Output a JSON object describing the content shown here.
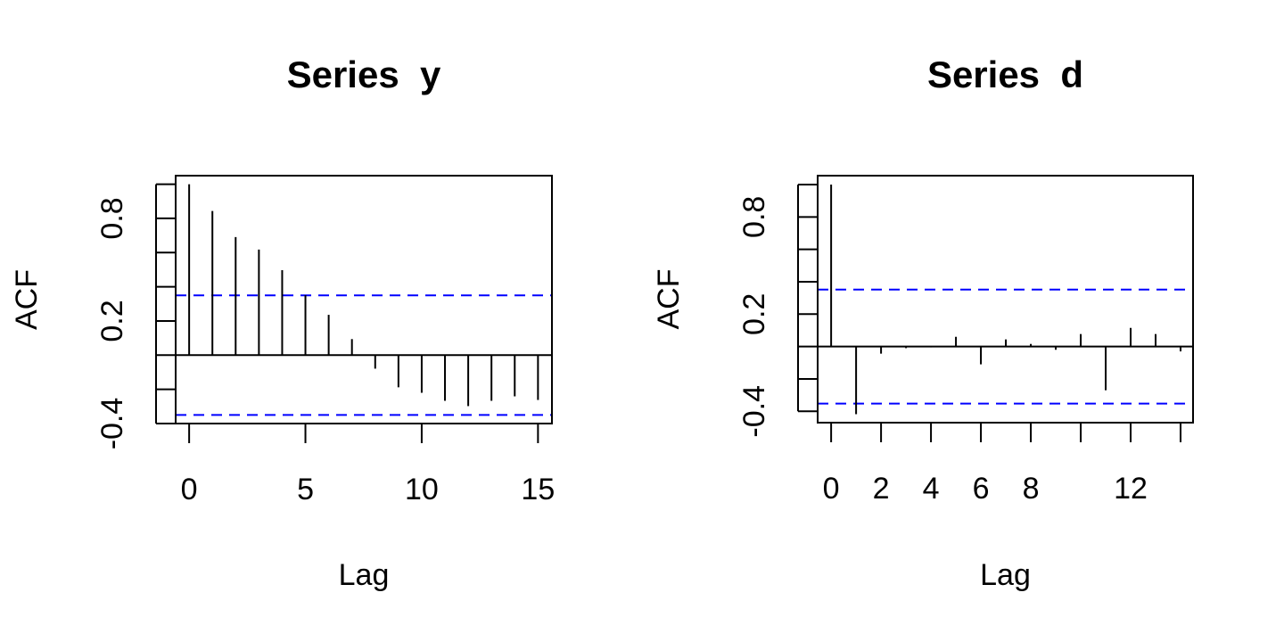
{
  "chart_data": [
    {
      "type": "acf",
      "title": "Series  y",
      "xlabel": "Lag",
      "ylabel": "ACF",
      "x": [
        0,
        1,
        2,
        3,
        4,
        5,
        6,
        7,
        8,
        9,
        10,
        11,
        12,
        13,
        14,
        15
      ],
      "values": [
        1.0,
        0.843,
        0.691,
        0.618,
        0.497,
        0.351,
        0.236,
        0.094,
        -0.079,
        -0.188,
        -0.22,
        -0.267,
        -0.298,
        -0.267,
        -0.241,
        -0.262
      ],
      "color": "#000000",
      "ci_upper": 0.35,
      "ci_lower": -0.35,
      "ci_color": "#0000ff",
      "xlim": [
        -0.58,
        15.6
      ],
      "ylim": [
        -0.4,
        1.05
      ],
      "xticks": [
        0,
        5,
        10,
        15
      ],
      "xticks_unlabeled": [],
      "yticks": [
        -0.4,
        0.2,
        0.8
      ],
      "yticks_unlabeled": [
        -0.2,
        0,
        0.4,
        0.6,
        1.0
      ]
    },
    {
      "type": "acf",
      "title": "Series  d",
      "xlabel": "Lag",
      "ylabel": "ACF",
      "x": [
        0,
        1,
        2,
        3,
        4,
        5,
        6,
        7,
        8,
        9,
        10,
        11,
        12,
        13,
        14
      ],
      "values": [
        1.0,
        -0.418,
        -0.044,
        -0.01,
        -0.005,
        0.06,
        -0.11,
        0.044,
        0.016,
        -0.02,
        0.077,
        -0.27,
        0.115,
        0.077,
        -0.03
      ],
      "color": "#000000",
      "ci_upper": 0.352,
      "ci_lower": -0.352,
      "ci_color": "#0000ff",
      "xlim": [
        -0.54,
        14.5
      ],
      "ylim": [
        -0.47,
        1.055
      ],
      "xticks": [
        0,
        2,
        4,
        6,
        8,
        12
      ],
      "xticks_unlabeled": [
        10,
        14
      ],
      "yticks": [
        -0.4,
        0.2,
        0.8
      ],
      "yticks_unlabeled": [
        -0.2,
        0,
        0.4,
        0.6,
        1.0
      ]
    }
  ]
}
